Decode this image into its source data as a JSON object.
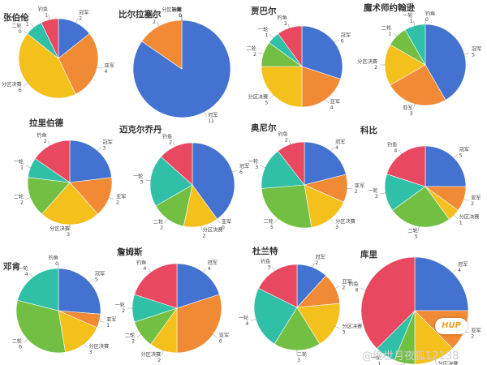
{
  "colors": {
    "冠军": "#4472d0",
    "亚军": "#f08a35",
    "分区决赛": "#f4c01c",
    "二轮": "#72bf44",
    "一轮": "#30c0a8",
    "钓鱼": "#e84860"
  },
  "chart_data": [
    {
      "type": "pie",
      "title": "张伯伦",
      "slices": [
        {
          "label": "冠军",
          "value": 2
        },
        {
          "label": "亚军",
          "value": 4
        },
        {
          "label": "分区决赛",
          "value": 6
        },
        {
          "label": "二轮",
          "value": 0
        },
        {
          "label": "一轮",
          "value": 1
        },
        {
          "label": "钓鱼",
          "value": 1
        }
      ]
    },
    {
      "type": "pie",
      "title": "比尔拉塞尔",
      "slices": [
        {
          "label": "冠军",
          "value": 11
        },
        {
          "label": "亚军",
          "value": 2
        },
        {
          "label": "分区决赛",
          "value": 0
        },
        {
          "label": "二轮",
          "value": 0
        },
        {
          "label": "一轮",
          "value": 0
        },
        {
          "label": "钓鱼",
          "value": 0
        }
      ]
    },
    {
      "type": "pie",
      "title": "贾巴尔",
      "slices": [
        {
          "label": "冠军",
          "value": 6
        },
        {
          "label": "亚军",
          "value": 4
        },
        {
          "label": "分区决赛",
          "value": 5
        },
        {
          "label": "二轮",
          "value": 2
        },
        {
          "label": "一轮",
          "value": 1
        },
        {
          "label": "钓鱼",
          "value": 2
        }
      ]
    },
    {
      "type": "pie",
      "title": "魔术师约翰逊",
      "slices": [
        {
          "label": "冠军",
          "value": 5
        },
        {
          "label": "亚军",
          "value": 3
        },
        {
          "label": "分区决赛",
          "value": 2
        },
        {
          "label": "二轮",
          "value": 1
        },
        {
          "label": "一轮",
          "value": 1
        },
        {
          "label": "钓鱼",
          "value": 0
        }
      ]
    },
    {
      "type": "pie",
      "title": "拉里伯德",
      "slices": [
        {
          "label": "冠军",
          "value": 3
        },
        {
          "label": "亚军",
          "value": 2
        },
        {
          "label": "分区决赛",
          "value": 3
        },
        {
          "label": "二轮",
          "value": 2
        },
        {
          "label": "一轮",
          "value": 1
        },
        {
          "label": "钓鱼",
          "value": 2
        }
      ]
    },
    {
      "type": "pie",
      "title": "迈克尔乔丹",
      "slices": [
        {
          "label": "冠军",
          "value": 6
        },
        {
          "label": "亚军",
          "value": 0
        },
        {
          "label": "分区决赛",
          "value": 2
        },
        {
          "label": "二轮",
          "value": 2
        },
        {
          "label": "一轮",
          "value": 3
        },
        {
          "label": "钓鱼",
          "value": 2
        }
      ]
    },
    {
      "type": "pie",
      "title": "奥尼尔",
      "slices": [
        {
          "label": "冠军",
          "value": 4
        },
        {
          "label": "亚军",
          "value": 2
        },
        {
          "label": "分区决赛",
          "value": 3
        },
        {
          "label": "二轮",
          "value": 5
        },
        {
          "label": "一轮",
          "value": 3
        },
        {
          "label": "钓鱼",
          "value": 2
        }
      ]
    },
    {
      "type": "pie",
      "title": "科比",
      "slices": [
        {
          "label": "冠军",
          "value": 5
        },
        {
          "label": "亚军",
          "value": 2
        },
        {
          "label": "分区决赛",
          "value": 1
        },
        {
          "label": "二轮",
          "value": 5
        },
        {
          "label": "一轮",
          "value": 3
        },
        {
          "label": "钓鱼",
          "value": 4
        }
      ]
    },
    {
      "type": "pie",
      "title": "邓肯",
      "slices": [
        {
          "label": "冠军",
          "value": 5
        },
        {
          "label": "亚军",
          "value": 1
        },
        {
          "label": "分区决赛",
          "value": 3
        },
        {
          "label": "二轮",
          "value": 6
        },
        {
          "label": "一轮",
          "value": 4
        },
        {
          "label": "钓鱼",
          "value": 0
        }
      ]
    },
    {
      "type": "pie",
      "title": "詹姆斯",
      "slices": [
        {
          "label": "冠军",
          "value": 4
        },
        {
          "label": "亚军",
          "value": 6
        },
        {
          "label": "分区决赛",
          "value": 2
        },
        {
          "label": "二轮",
          "value": 2
        },
        {
          "label": "一轮",
          "value": 2
        },
        {
          "label": "钓鱼",
          "value": 4
        }
      ]
    },
    {
      "type": "pie",
      "title": "杜兰特",
      "slices": [
        {
          "label": "冠军",
          "value": 2
        },
        {
          "label": "亚军",
          "value": 2
        },
        {
          "label": "分区决赛",
          "value": 3
        },
        {
          "label": "二轮",
          "value": 3
        },
        {
          "label": "一轮",
          "value": 4
        },
        {
          "label": "钓鱼",
          "value": 3
        }
      ]
    },
    {
      "type": "pie",
      "title": "库里",
      "slices": [
        {
          "label": "冠军",
          "value": 4
        },
        {
          "label": "亚军",
          "value": 2
        },
        {
          "label": "分区决赛",
          "value": 2
        },
        {
          "label": "二轮",
          "value": 1
        },
        {
          "label": "一轮",
          "value": 1
        },
        {
          "label": "钓鱼",
          "value": 6
        }
      ]
    }
  ],
  "watermark": {
    "logo": "HUP",
    "text": "@绝世月夜狐12138"
  }
}
